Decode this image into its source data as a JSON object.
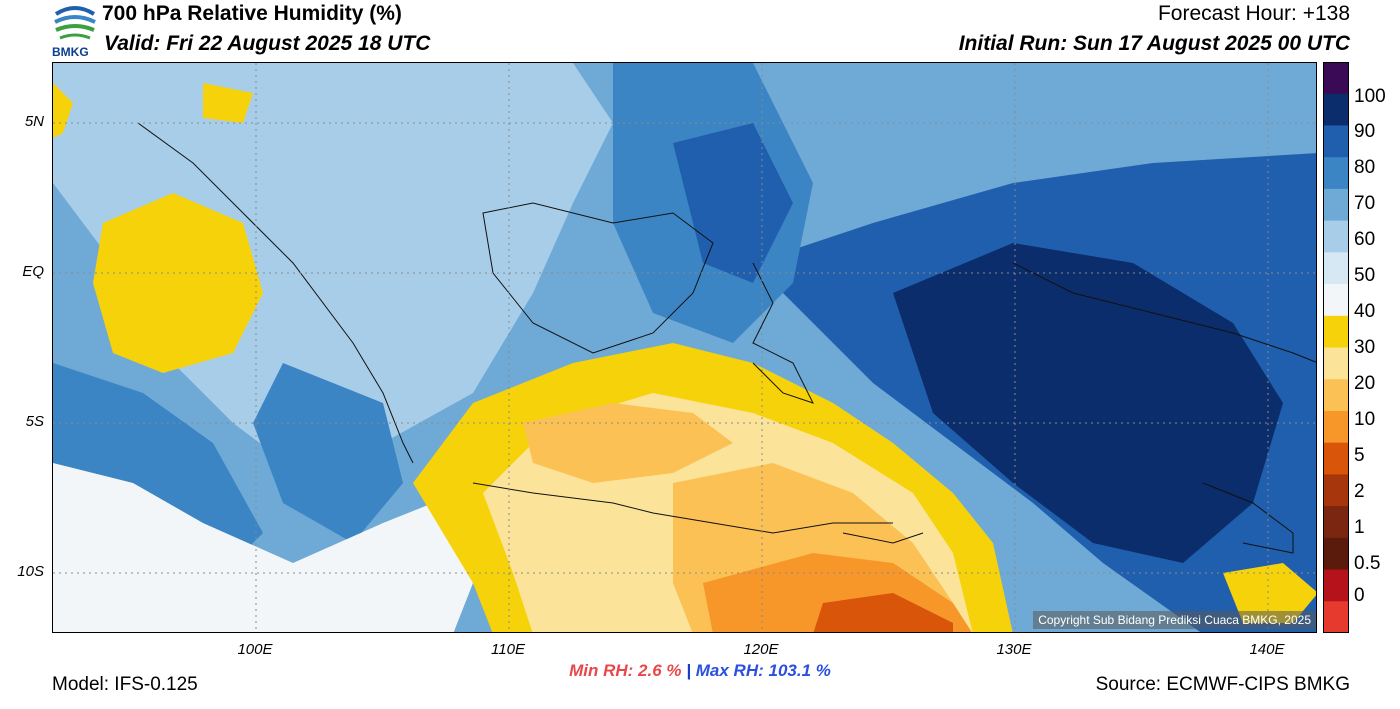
{
  "header": {
    "title": "700 hPa Relative Humidity (%)",
    "valid": "Valid: Fri 22 August 2025 18 UTC",
    "forecast_hour": "Forecast Hour: +138",
    "initial_run": "Initial Run: Sun 17 August 2025 00 UTC",
    "logo_text": "BMKG"
  },
  "map": {
    "lat_labels": [
      "5N",
      "EQ",
      "5S",
      "10S"
    ],
    "lon_labels": [
      "100E",
      "110E",
      "120E",
      "130E",
      "140E"
    ],
    "copyright": "Copyright Sub Bidang Prediksi Cuaca BMKG, 2025"
  },
  "stats": {
    "min_label": "Min RH:",
    "min_value": "2.6 %",
    "separator": "|",
    "max_label": "Max RH:",
    "max_value": "103.1 %"
  },
  "footer": {
    "model": "Model: IFS-0.125",
    "source": "Source: ECMWF-CIPS BMKG"
  },
  "colorbar": {
    "labels": [
      "100",
      "90",
      "80",
      "70",
      "60",
      "50",
      "40",
      "30",
      "20",
      "10",
      "5",
      "2",
      "1",
      "0.5",
      "0"
    ],
    "colors": [
      "#3b0a57",
      "#0c2d6b",
      "#1f5fae",
      "#3b85c4",
      "#6faad6",
      "#a7cde8",
      "#d5e8f4",
      "#f3f6f8",
      "#f6d20a",
      "#fbe49a",
      "#fbc155",
      "#f7972a",
      "#d8550a",
      "#a8360c",
      "#7a2610",
      "#5a1a0c",
      "#b5121b",
      "#e63a2e"
    ]
  }
}
